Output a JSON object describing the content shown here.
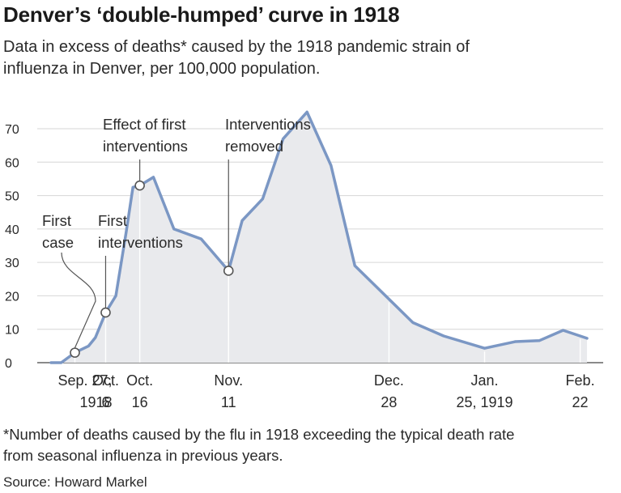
{
  "title": "Denver’s ‘double-humped’ curve in 1918",
  "subtitle": "Data in excess of deaths* caused by the 1918 pandemic strain of influenza in Denver, per 100,000 population.",
  "footnote": "*Number of deaths caused by the flu in 1918 exceeding the typical death rate from seasonal influenza in previous years.",
  "source": "Source: Howard Markel",
  "colors": {
    "line": "#7b97c4",
    "area": "#e9eaed",
    "grid": "#d6d6d6",
    "axis": "#444444",
    "marker_fill": "#ffffff"
  },
  "chart_data": {
    "type": "area",
    "title": "Denver’s ‘double-humped’ curve in 1918",
    "xlabel": "",
    "ylabel": "",
    "ylim": [
      0,
      75
    ],
    "yticks": [
      "0",
      "10",
      "20",
      "30",
      "40",
      "50",
      "60",
      "70"
    ],
    "grid": true,
    "legend": "none",
    "x_ticks": [
      {
        "date": "1918-09-27",
        "lines": [
          "Sep. 27,",
          "1918"
        ]
      },
      {
        "date": "1918-10-06",
        "lines": [
          "Oct.",
          "6"
        ]
      },
      {
        "date": "1918-10-16",
        "lines": [
          "Oct.",
          "16"
        ]
      },
      {
        "date": "1918-11-11",
        "lines": [
          "Nov.",
          "11"
        ]
      },
      {
        "date": "1918-12-28",
        "lines": [
          "Dec.",
          "28"
        ]
      },
      {
        "date": "1919-01-25",
        "lines": [
          "Jan.",
          "25, 1919"
        ]
      },
      {
        "date": "1919-02-22",
        "lines": [
          "Feb.",
          "22"
        ]
      }
    ],
    "series": [
      {
        "points": [
          {
            "x": "1918-09-20",
            "y": 0
          },
          {
            "x": "1918-09-23",
            "y": 0
          },
          {
            "x": "1918-09-27",
            "y": 3
          },
          {
            "x": "1918-10-01",
            "y": 5
          },
          {
            "x": "1918-10-03",
            "y": 7.5
          },
          {
            "x": "1918-10-06",
            "y": 15
          },
          {
            "x": "1918-10-09",
            "y": 20
          },
          {
            "x": "1918-10-12",
            "y": 39
          },
          {
            "x": "1918-10-14",
            "y": 52.5
          },
          {
            "x": "1918-10-16",
            "y": 53
          },
          {
            "x": "1918-10-20",
            "y": 55.5
          },
          {
            "x": "1918-10-26",
            "y": 40
          },
          {
            "x": "1918-11-03",
            "y": 37
          },
          {
            "x": "1918-11-11",
            "y": 27.5
          },
          {
            "x": "1918-11-15",
            "y": 42.5
          },
          {
            "x": "1918-11-21",
            "y": 49
          },
          {
            "x": "1918-11-27",
            "y": 67
          },
          {
            "x": "1918-12-04",
            "y": 75
          },
          {
            "x": "1918-12-11",
            "y": 59
          },
          {
            "x": "1918-12-18",
            "y": 29
          },
          {
            "x": "1918-12-26",
            "y": 21
          },
          {
            "x": "1919-01-04",
            "y": 12
          },
          {
            "x": "1919-01-13",
            "y": 8
          },
          {
            "x": "1919-01-25",
            "y": 4.3
          },
          {
            "x": "1919-02-03",
            "y": 6.3
          },
          {
            "x": "1919-02-10",
            "y": 6.6
          },
          {
            "x": "1919-02-17",
            "y": 9.7
          },
          {
            "x": "1919-02-24",
            "y": 7.3
          }
        ]
      }
    ],
    "markers": [
      {
        "x": "1918-09-27",
        "y": 3
      },
      {
        "x": "1918-10-06",
        "y": 15
      },
      {
        "x": "1918-10-16",
        "y": 53
      },
      {
        "x": "1918-11-11",
        "y": 27.5
      }
    ],
    "annotations": [
      {
        "x": "1918-09-27",
        "y": 3,
        "lines": [
          "First",
          "case"
        ]
      },
      {
        "x": "1918-10-06",
        "y": 15,
        "lines": [
          "First",
          "interventions"
        ]
      },
      {
        "x": "1918-10-16",
        "y": 53,
        "lines": [
          "Effect of first",
          "interventions"
        ]
      },
      {
        "x": "1918-11-11",
        "y": 27.5,
        "lines": [
          "Interventions",
          "removed"
        ]
      }
    ]
  }
}
